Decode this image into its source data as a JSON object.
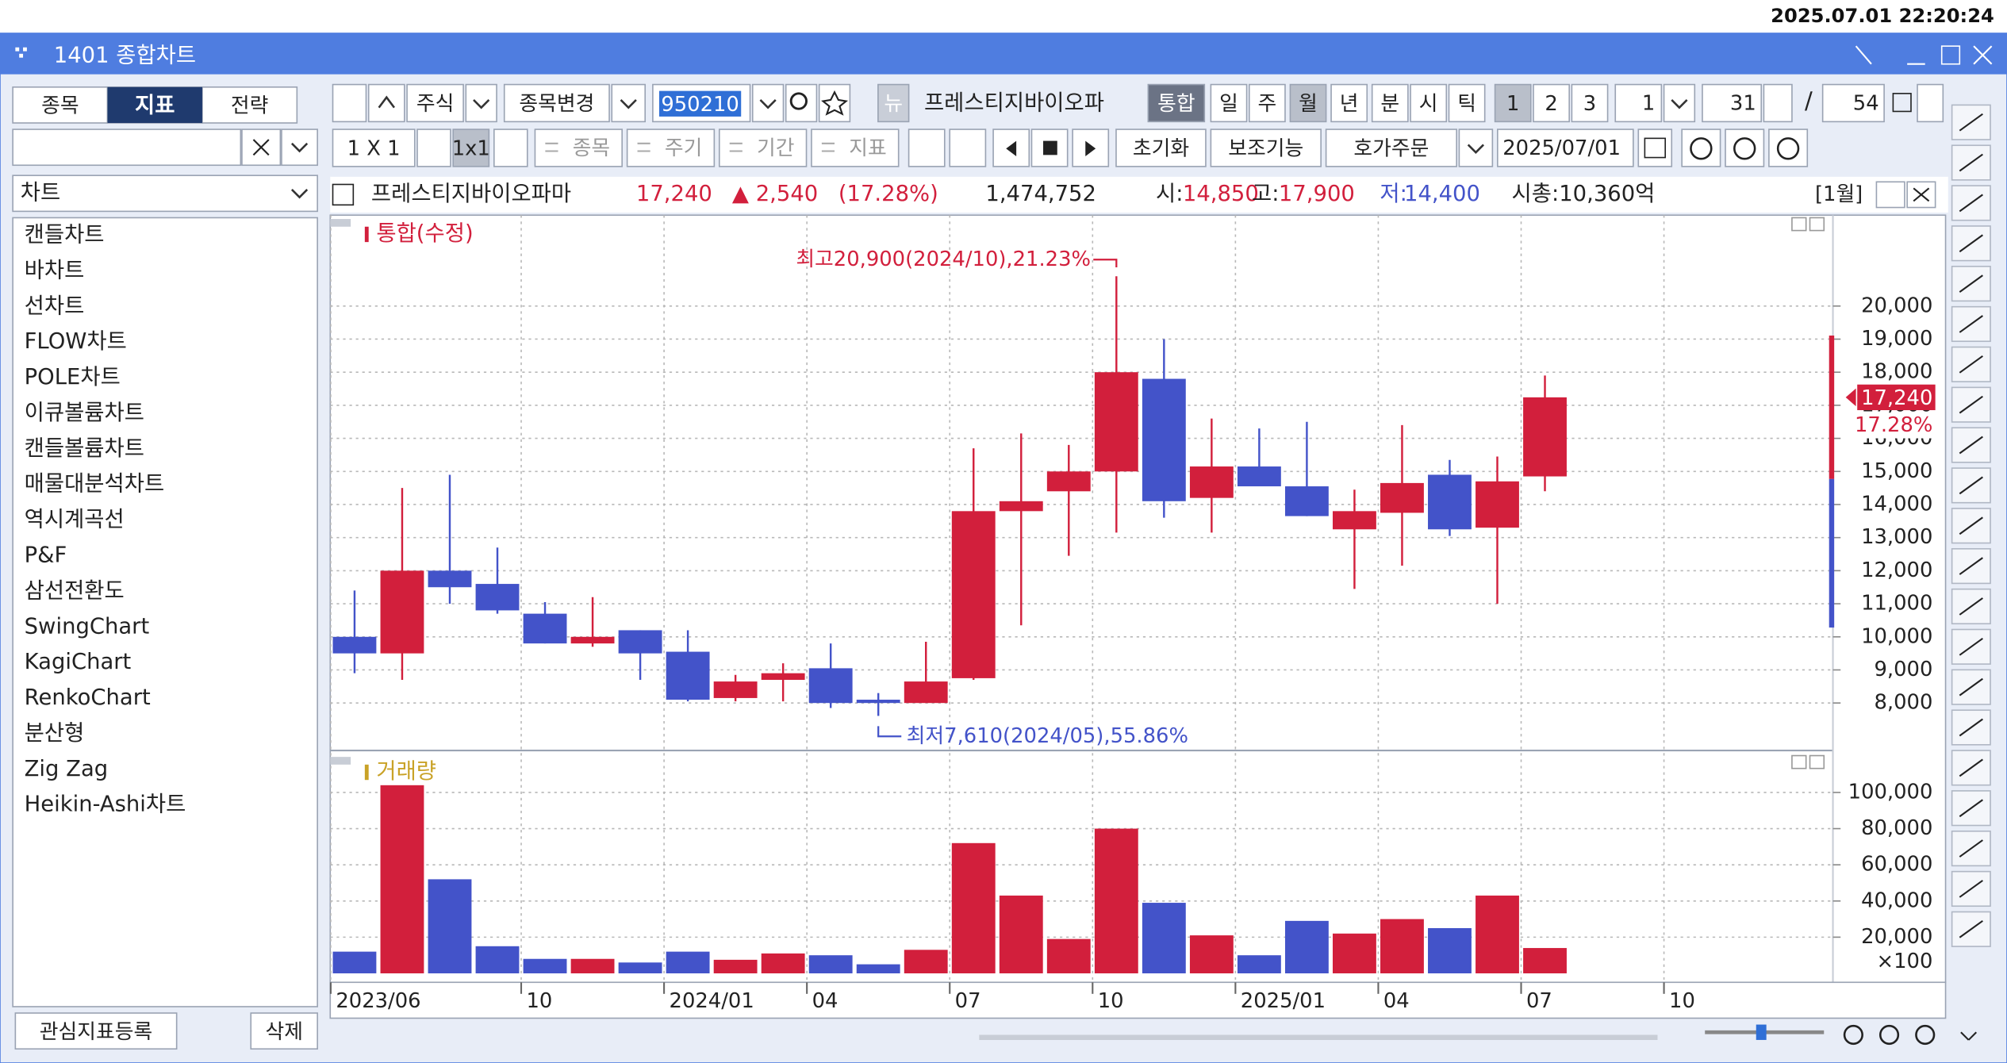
{
  "timestamp": "2025.07.01 22:20:24",
  "window": {
    "title": "1401 종합차트"
  },
  "left_panel": {
    "tabs": [
      "종목",
      "지표",
      "전략"
    ],
    "dropdown": "차트",
    "items": [
      "캔들차트",
      "바차트",
      "선차트",
      "FLOW차트",
      "POLE차트",
      "이큐볼륨차트",
      "캔들볼륨차트",
      "매물대분석차트",
      "역시계곡선",
      "P&F",
      "삼선전환도",
      "SwingChart",
      "KagiChart",
      "RenkoChart",
      "분산형",
      "Zig Zag",
      "Heikin-Ashi차트"
    ],
    "buttons": [
      "관심지표등록",
      "삭제"
    ]
  },
  "toolbar": {
    "market": "주식",
    "change": "종목변경",
    "code": "950210",
    "news": "뉴",
    "name": "프레스티지바이오파",
    "combined": "통합",
    "periods": [
      "일",
      "주",
      "월",
      "년",
      "분",
      "시",
      "틱"
    ],
    "pages": [
      "1",
      "2",
      "3"
    ],
    "count": "1",
    "range": "31",
    "slash": "/",
    "total": "54",
    "layout": "1 X 1",
    "layout_button": "1x1",
    "links": [
      "종목",
      "주기",
      "기간",
      "지표"
    ],
    "reset": "초기화",
    "aux": "보조기능",
    "order": "호가주문",
    "date": "2025/07/01"
  },
  "info": {
    "name": "프레스티지바이오파마",
    "price": "17,240",
    "change": "▲ 2,540",
    "rate": "(17.28%)",
    "volume": "1,474,752",
    "open_label": "시:",
    "open": "14,850",
    "high_label": "고:",
    "high": "17,900",
    "low_label": "저:",
    "low": "14,400",
    "cap": "시총:10,360억",
    "period": "[1월]"
  },
  "chart_data": {
    "type": "candlestick",
    "title": "통합(수정)",
    "categories": [
      "2023/06",
      null,
      null,
      null,
      "10",
      null,
      null,
      "2024/01",
      null,
      null,
      "04",
      null,
      null,
      "07",
      null,
      null,
      "10",
      null,
      null,
      "2025/01",
      null,
      null,
      "04",
      null,
      null,
      "07",
      null,
      null,
      "10"
    ],
    "open": [
      10000,
      9500,
      12000,
      11600,
      10700,
      9800,
      10200,
      9550,
      8150,
      8700,
      9050,
      8100,
      8000,
      8750,
      13800,
      14400,
      15000,
      17800,
      14200,
      15150,
      14550,
      13250,
      13750,
      14900,
      13300,
      14850,
      null,
      null,
      null
    ],
    "high": [
      11400,
      14500,
      14900,
      12700,
      11050,
      11200,
      10200,
      10200,
      8850,
      9200,
      9800,
      8300,
      9850,
      15700,
      16150,
      15800,
      20900,
      19000,
      16600,
      16300,
      16500,
      14450,
      16400,
      15350,
      15450,
      17900,
      null,
      null,
      null
    ],
    "low": [
      8900,
      8700,
      11000,
      10700,
      9800,
      9700,
      8700,
      8050,
      8050,
      8050,
      7850,
      7610,
      8000,
      8700,
      10350,
      12450,
      13150,
      13600,
      13150,
      14550,
      13650,
      11450,
      12150,
      13050,
      11000,
      14400,
      null,
      null,
      null
    ],
    "close": [
      9500,
      12000,
      11500,
      10800,
      9800,
      10000,
      9500,
      8100,
      8650,
      8900,
      8000,
      8000,
      8650,
      13800,
      14100,
      15000,
      18000,
      14100,
      15150,
      14550,
      13650,
      13800,
      14650,
      13250,
      14700,
      17240,
      null,
      null,
      null
    ],
    "up_color": "#d21f3c",
    "down_color": "#4353c9",
    "grid": true,
    "ylim": [
      6680,
      22670
    ],
    "yticks": [
      {
        "value": 8000,
        "label": "8,000"
      },
      {
        "value": 9000,
        "label": "9,000"
      },
      {
        "value": 10000,
        "label": "10,000"
      },
      {
        "value": 11000,
        "label": "11,000"
      },
      {
        "value": 12000,
        "label": "12,000"
      },
      {
        "value": 13000,
        "label": "13,000"
      },
      {
        "value": 14000,
        "label": "14,000"
      },
      {
        "value": 15000,
        "label": "15,000"
      },
      {
        "value": 16000,
        "label": "16,000"
      },
      {
        "value": 17000,
        "label": "17,000"
      },
      {
        "value": 18000,
        "label": "18,000"
      },
      {
        "value": 19000,
        "label": "19,000"
      },
      {
        "value": 20000,
        "label": "20,000"
      }
    ],
    "current_price_label": "17,240",
    "current_rate_label": "17.28%",
    "annotations": [
      "최고20,900(2024/10),21.23%",
      "최저7,610(2024/05),55.86%"
    ],
    "volume": {
      "title": "거래량",
      "color": "#c9a227",
      "unit_label": "×100",
      "values": [
        12000,
        104000,
        52000,
        15000,
        8000,
        8000,
        6000,
        12000,
        7500,
        11000,
        10000,
        5000,
        13000,
        72000,
        43000,
        19000,
        80000,
        39000,
        21000,
        10000,
        29000,
        22000,
        30000,
        25000,
        43000,
        14000,
        null,
        null,
        null
      ],
      "ylim": [
        0,
        120000
      ],
      "yticks": [
        {
          "value": 20000,
          "label": "20,000"
        },
        {
          "value": 40000,
          "label": "40,000"
        },
        {
          "value": 60000,
          "label": "60,000"
        },
        {
          "value": 80000,
          "label": "80,000"
        },
        {
          "value": 100000,
          "label": "100,000"
        }
      ]
    }
  }
}
